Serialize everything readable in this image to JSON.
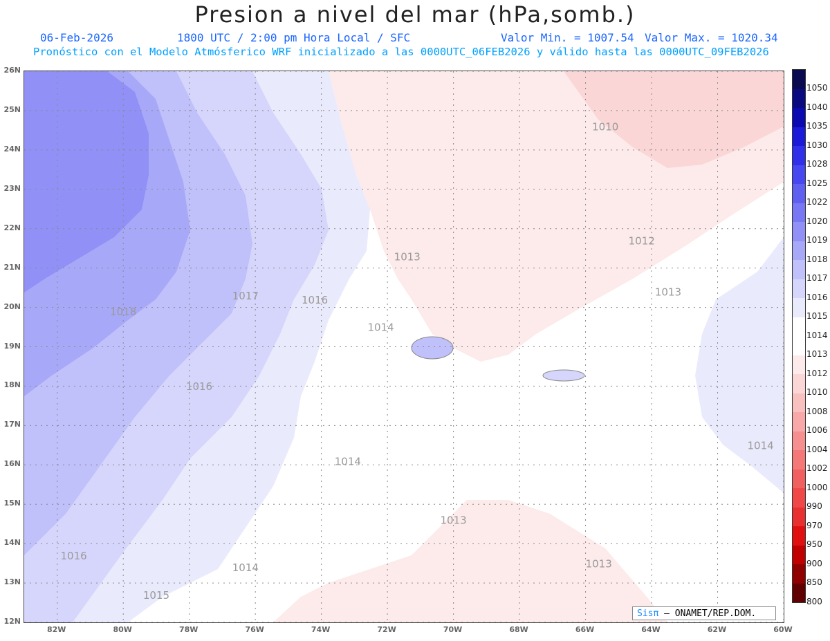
{
  "title": "Presion a nivel del mar (hPa,somb.)",
  "date": "06-Feb-2026",
  "time_info": "1800 UTC / 2:00 pm Hora Local / SFC",
  "min_label": "Valor Min. = 1007.54",
  "max_label": "Valor Max. = 1020.34",
  "forecast_line": "Pronóstico con el Modelo Atmósferico WRF inicializado a las 0000UTC_06FEB2026 y válido hasta las  0000UTC_09FEB2026",
  "lat_labels": [
    "26N",
    "25N",
    "24N",
    "23N",
    "22N",
    "21N",
    "20N",
    "19N",
    "18N",
    "17N",
    "16N",
    "15N",
    "14N",
    "13N",
    "12N"
  ],
  "lon_labels": [
    "82W",
    "80W",
    "78W",
    "76W",
    "74W",
    "72W",
    "70W",
    "68W",
    "66W",
    "64W",
    "62W",
    "60W"
  ],
  "colorbar_labels": [
    "1050",
    "1040",
    "1035",
    "1030",
    "1028",
    "1025",
    "1022",
    "1020",
    "1019",
    "1018",
    "1017",
    "1016",
    "1015",
    "1014",
    "1013",
    "1012",
    "1010",
    "1008",
    "1006",
    "1004",
    "1002",
    "1000",
    "990",
    "970",
    "950",
    "900",
    "850",
    "800"
  ],
  "colorbar_colors": [
    "#0a0a50",
    "#0a0a80",
    "#0a0ab0",
    "#1a1ad8",
    "#3030e8",
    "#4848f0",
    "#6060f0",
    "#7878f4",
    "#9090f6",
    "#a8a8f8",
    "#c0c0fa",
    "#d6d6fc",
    "#eaeafd",
    "#ffffff",
    "#ffffff",
    "#fdeaea",
    "#fbd6d6",
    "#f9c0c0",
    "#f8a8a8",
    "#f69090",
    "#f47878",
    "#f06060",
    "#f04848",
    "#e83030",
    "#e01010",
    "#c00000",
    "#900000",
    "#600000"
  ],
  "contour_labels": [
    {
      "text": "1010",
      "lon": -65.8,
      "lat": 24.5
    },
    {
      "text": "1012",
      "lon": -64.7,
      "lat": 21.6
    },
    {
      "text": "1013",
      "lon": -71.8,
      "lat": 21.2
    },
    {
      "text": "1013",
      "lon": -63.9,
      "lat": 20.3
    },
    {
      "text": "1017",
      "lon": -76.7,
      "lat": 20.2
    },
    {
      "text": "1016",
      "lon": -74.6,
      "lat": 20.1
    },
    {
      "text": "1018",
      "lon": -80.4,
      "lat": 19.8
    },
    {
      "text": "1014",
      "lon": -72.6,
      "lat": 19.4
    },
    {
      "text": "1016",
      "lon": -78.1,
      "lat": 17.9
    },
    {
      "text": "1014",
      "lon": -61.1,
      "lat": 16.4
    },
    {
      "text": "1014",
      "lon": -73.6,
      "lat": 16.0
    },
    {
      "text": "1013",
      "lon": -70.4,
      "lat": 14.5
    },
    {
      "text": "1016",
      "lon": -81.9,
      "lat": 13.6
    },
    {
      "text": "1014",
      "lon": -76.7,
      "lat": 13.3
    },
    {
      "text": "1013",
      "lon": -66.0,
      "lat": 13.4
    },
    {
      "text": "1015",
      "lon": -79.4,
      "lat": 12.6
    }
  ],
  "credit_sis": "Sisπ",
  "credit_text": "– ONAMET/REP.DOM."
}
